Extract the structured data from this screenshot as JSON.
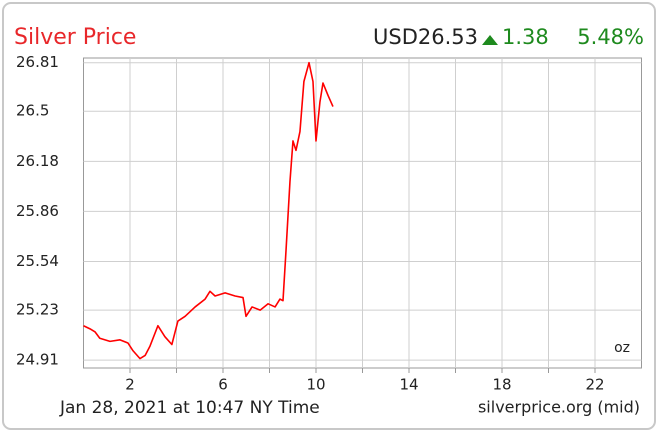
{
  "chart_data": {
    "type": "line",
    "title": "Silver Price",
    "price": "USD26.53",
    "change": "1.38",
    "change_percent": "5.48%",
    "timestamp": "Jan 28, 2021 at 10:47 NY Time",
    "source": "silverprice.org (mid)",
    "unit": "oz",
    "color": "#ff0000",
    "grid": true,
    "x": [
      0,
      0.28,
      0.5,
      0.7,
      1.14,
      1.57,
      1.91,
      2.13,
      2.43,
      2.65,
      2.86,
      3.2,
      3.5,
      3.8,
      4.06,
      4.37,
      4.8,
      5.23,
      5.44,
      5.66,
      6.09,
      6.52,
      6.86,
      6.99,
      7.25,
      7.6,
      7.94,
      8.24,
      8.45,
      8.58,
      8.71,
      8.88,
      9.01,
      9.14,
      9.31,
      9.48,
      9.7,
      9.87,
      10.0,
      10.17,
      10.3,
      10.52,
      10.73
    ],
    "values": [
      25.13,
      25.11,
      25.09,
      25.05,
      25.03,
      25.04,
      25.02,
      24.97,
      24.92,
      24.94,
      25.0,
      25.13,
      25.06,
      25.01,
      25.16,
      25.19,
      25.25,
      25.3,
      25.35,
      25.32,
      25.34,
      25.32,
      25.31,
      25.19,
      25.25,
      25.23,
      25.27,
      25.25,
      25.3,
      25.29,
      25.61,
      26.05,
      26.31,
      26.25,
      26.37,
      26.69,
      26.81,
      26.69,
      26.31,
      26.56,
      26.68,
      26.6,
      26.53
    ],
    "xlim": [
      0,
      24
    ],
    "xticks": [
      2,
      6,
      10,
      14,
      18,
      22
    ],
    "xminor": [
      4,
      8,
      12,
      16,
      20
    ],
    "ylim": [
      24.86,
      26.84
    ],
    "yticks": [
      24.91,
      25.23,
      25.54,
      25.86,
      26.18,
      26.5,
      26.81
    ]
  }
}
